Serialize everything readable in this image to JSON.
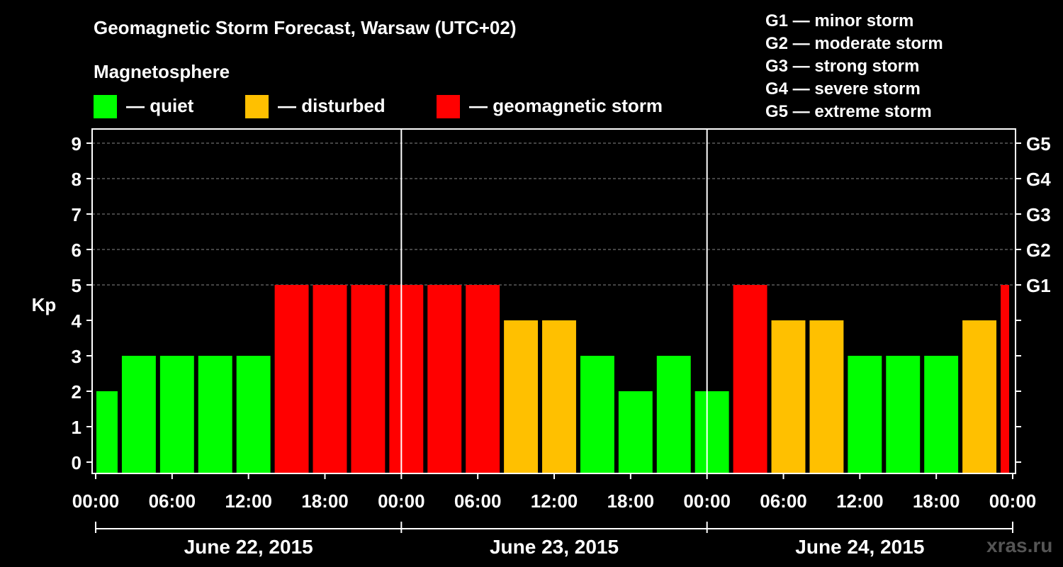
{
  "title": "Geomagnetic Storm Forecast, Warsaw (UTC+02)",
  "subtitle": "Magnetosphere",
  "legend": [
    {
      "label": "— quiet",
      "color": "#00ff00"
    },
    {
      "label": "— disturbed",
      "color": "#ffc000"
    },
    {
      "label": "— geomagnetic storm",
      "color": "#ff0000"
    }
  ],
  "g_legend": [
    "G1 — minor storm",
    "G2 — moderate storm",
    "G3 — strong storm",
    "G4 — severe storm",
    "G5 — extreme storm"
  ],
  "watermark": "xras.ru",
  "chart_data": {
    "type": "bar",
    "ylabel": "Kp",
    "ylim": [
      0,
      9
    ],
    "yticks": [
      "0",
      "1",
      "2",
      "3",
      "4",
      "5",
      "6",
      "7",
      "8",
      "9"
    ],
    "right_ticks": [
      {
        "value": 5,
        "label": "G1"
      },
      {
        "value": 6,
        "label": "G2"
      },
      {
        "value": 7,
        "label": "G3"
      },
      {
        "value": 8,
        "label": "G4"
      },
      {
        "value": 9,
        "label": "G5"
      }
    ],
    "xlim_hours": [
      0,
      72
    ],
    "xticks": [
      {
        "hour": 0,
        "label": "00:00"
      },
      {
        "hour": 6,
        "label": "06:00"
      },
      {
        "hour": 12,
        "label": "12:00"
      },
      {
        "hour": 18,
        "label": "18:00"
      },
      {
        "hour": 24,
        "label": "00:00"
      },
      {
        "hour": 30,
        "label": "06:00"
      },
      {
        "hour": 36,
        "label": "12:00"
      },
      {
        "hour": 42,
        "label": "18:00"
      },
      {
        "hour": 48,
        "label": "00:00"
      },
      {
        "hour": 54,
        "label": "06:00"
      },
      {
        "hour": 60,
        "label": "12:00"
      },
      {
        "hour": 66,
        "label": "18:00"
      },
      {
        "hour": 72,
        "label": "00:00"
      }
    ],
    "days": [
      {
        "label": "June 22, 2015",
        "start": 0,
        "end": 24
      },
      {
        "label": "June 23, 2015",
        "start": 24,
        "end": 48
      },
      {
        "label": "June 24, 2015",
        "start": 48,
        "end": 72
      }
    ],
    "grid": true,
    "colors": {
      "quiet": "#00ff00",
      "disturbed": "#ffc000",
      "storm": "#ff0000"
    },
    "bars": [
      {
        "start": 0,
        "end": 2,
        "kp": 2,
        "level": "quiet"
      },
      {
        "start": 2,
        "end": 5,
        "kp": 3,
        "level": "quiet"
      },
      {
        "start": 5,
        "end": 8,
        "kp": 3,
        "level": "quiet"
      },
      {
        "start": 8,
        "end": 11,
        "kp": 3,
        "level": "quiet"
      },
      {
        "start": 11,
        "end": 14,
        "kp": 3,
        "level": "quiet"
      },
      {
        "start": 14,
        "end": 17,
        "kp": 5,
        "level": "storm"
      },
      {
        "start": 17,
        "end": 20,
        "kp": 5,
        "level": "storm"
      },
      {
        "start": 20,
        "end": 23,
        "kp": 5,
        "level": "storm"
      },
      {
        "start": 23,
        "end": 26,
        "kp": 5,
        "level": "storm"
      },
      {
        "start": 26,
        "end": 29,
        "kp": 5,
        "level": "storm"
      },
      {
        "start": 29,
        "end": 32,
        "kp": 5,
        "level": "storm"
      },
      {
        "start": 32,
        "end": 35,
        "kp": 4,
        "level": "disturbed"
      },
      {
        "start": 35,
        "end": 38,
        "kp": 4,
        "level": "disturbed"
      },
      {
        "start": 38,
        "end": 41,
        "kp": 3,
        "level": "quiet"
      },
      {
        "start": 41,
        "end": 44,
        "kp": 2,
        "level": "quiet"
      },
      {
        "start": 44,
        "end": 47,
        "kp": 3,
        "level": "quiet"
      },
      {
        "start": 47,
        "end": 50,
        "kp": 2,
        "level": "quiet"
      },
      {
        "start": 50,
        "end": 53,
        "kp": 5,
        "level": "storm"
      },
      {
        "start": 53,
        "end": 56,
        "kp": 4,
        "level": "disturbed"
      },
      {
        "start": 56,
        "end": 59,
        "kp": 4,
        "level": "disturbed"
      },
      {
        "start": 59,
        "end": 62,
        "kp": 3,
        "level": "quiet"
      },
      {
        "start": 62,
        "end": 65,
        "kp": 3,
        "level": "quiet"
      },
      {
        "start": 65,
        "end": 68,
        "kp": 3,
        "level": "quiet"
      },
      {
        "start": 68,
        "end": 71,
        "kp": 4,
        "level": "disturbed"
      },
      {
        "start": 71,
        "end": 72,
        "kp": 5,
        "level": "storm"
      }
    ]
  }
}
